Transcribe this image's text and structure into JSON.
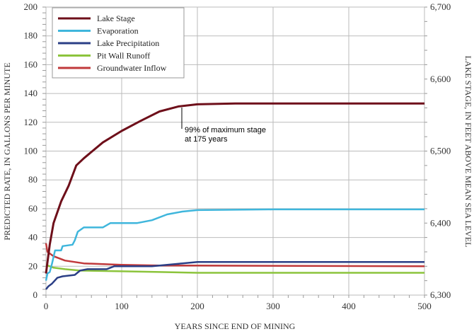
{
  "chart_data": {
    "type": "line",
    "xlabel": "YEARS SINCE END OF MINING",
    "ylabel": "PREDICTED RATE, IN GALLONS PER MINUTE",
    "y2label": "LAKE STAGE, IN FEET ABOVE MEAN SEA LEVEL",
    "xlim": [
      0,
      500
    ],
    "ylim": [
      0,
      200
    ],
    "y2lim": [
      6300,
      6700
    ],
    "xticks": [
      "0",
      "100",
      "200",
      "300",
      "400",
      "500"
    ],
    "yticks": [
      "0",
      "20",
      "40",
      "60",
      "80",
      "100",
      "120",
      "140",
      "160",
      "180",
      "200"
    ],
    "y2ticks": [
      "6,300",
      "6,400",
      "6,500",
      "6,600",
      "6,700"
    ],
    "grid": true,
    "legend": "top-left",
    "annotation": {
      "lines": [
        "99% of maximum stage",
        "at 175 years"
      ],
      "x": 175
    },
    "series": [
      {
        "name": "Lake Stage",
        "axis": "right",
        "color": "#6e0f1a",
        "x": [
          0,
          5,
          10,
          20,
          30,
          40,
          50,
          75,
          100,
          125,
          150,
          175,
          200,
          250,
          500
        ],
        "y": [
          6330,
          6370,
          6400,
          6430,
          6452,
          6480,
          6490,
          6512,
          6528,
          6542,
          6555,
          6562,
          6565,
          6566,
          6566
        ]
      },
      {
        "name": "Evaporation",
        "axis": "left",
        "color": "#3fb6dc",
        "x": [
          0,
          2,
          5,
          8,
          12,
          20,
          22,
          35,
          38,
          42,
          50,
          75,
          85,
          120,
          140,
          160,
          180,
          200,
          300,
          500
        ],
        "y": [
          10,
          15,
          16,
          22,
          31,
          31,
          34,
          35,
          38,
          44,
          47,
          47,
          50,
          50,
          52,
          56,
          58,
          59,
          59.5,
          59.5
        ]
      },
      {
        "name": "Lake Precipitation",
        "axis": "left",
        "color": "#2b3f86",
        "x": [
          0,
          3,
          8,
          15,
          22,
          38,
          45,
          55,
          80,
          90,
          140,
          180,
          200,
          500
        ],
        "y": [
          4,
          6,
          8,
          12,
          13,
          14,
          17,
          18,
          18,
          20,
          20,
          22,
          23,
          23
        ]
      },
      {
        "name": "Pit Wall Runoff",
        "axis": "left",
        "color": "#8cc43c",
        "x": [
          0,
          10,
          25,
          45,
          100,
          150,
          200,
          500
        ],
        "y": [
          21,
          19,
          18,
          17,
          16.5,
          16,
          15.5,
          15.5
        ]
      },
      {
        "name": "Groundwater Inflow",
        "axis": "left",
        "color": "#c0393b",
        "x": [
          0,
          2,
          10,
          25,
          50,
          100,
          150,
          200,
          500
        ],
        "y": [
          36,
          30,
          27,
          24,
          22,
          21,
          20.5,
          20.5,
          20
        ]
      }
    ]
  }
}
